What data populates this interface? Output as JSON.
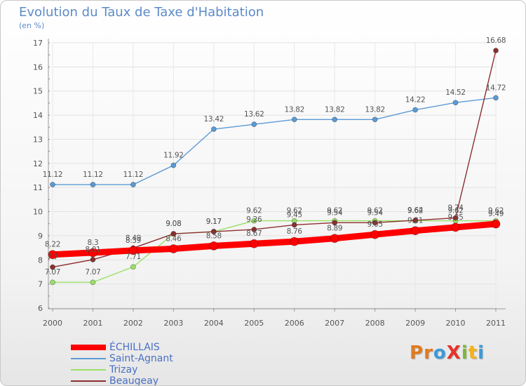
{
  "title": "Evolution du Taux de Taxe d'Habitation",
  "subtitle": "(en %)",
  "logo": {
    "text": "ProXiti",
    "letters": [
      "P",
      "r",
      "o",
      "X",
      "i",
      "t",
      "i"
    ],
    "colors": [
      "#e07b1e",
      "#e07b1e",
      "#3a9ad9",
      "#e5342a",
      "#7ab83a",
      "#f2b21b",
      "#3a9ad9"
    ]
  },
  "chart_data": {
    "type": "line",
    "x": [
      2000,
      2001,
      2002,
      2003,
      2004,
      2005,
      2006,
      2007,
      2008,
      2009,
      2010,
      2011
    ],
    "ylim": [
      6,
      17
    ],
    "yticks": [
      6,
      7,
      8,
      9,
      10,
      11,
      12,
      13,
      14,
      15,
      16,
      17
    ],
    "grid": true,
    "legend_position": "bottom-left",
    "series": [
      {
        "name": "ÉCHILLAIS",
        "color": "#ff0000",
        "values": [
          8.22,
          8.3,
          8.39,
          8.46,
          8.58,
          8.67,
          8.76,
          8.89,
          9.05,
          9.21,
          9.35,
          9.49
        ],
        "labels": [
          "8.22",
          "8.3",
          "8.39",
          "8.46",
          "8.58",
          "8.67",
          "8.76",
          "8.89",
          "9.05",
          "9.21",
          "9.35",
          "9.49"
        ]
      },
      {
        "name": "Saint-Agnant",
        "color": "#5b9bd5",
        "values": [
          11.12,
          11.12,
          11.12,
          11.92,
          13.42,
          13.62,
          13.82,
          13.82,
          13.82,
          14.22,
          14.52,
          14.72
        ],
        "labels": [
          "11.12",
          "11.12",
          "11.12",
          "11.92",
          "13.42",
          "13.62",
          "13.82",
          "13.82",
          "13.82",
          "14.22",
          "14.52",
          "14.72"
        ]
      },
      {
        "name": "Trizay",
        "color": "#99e066",
        "values": [
          7.07,
          7.07,
          7.71,
          9.08,
          9.17,
          9.62,
          9.62,
          9.62,
          9.62,
          9.62,
          9.62,
          9.62
        ],
        "labels": [
          "7.07",
          "7.07",
          "7.71",
          "9.08",
          "9.17",
          "9.62",
          "9.62",
          "9.62",
          "9.62",
          "9.62",
          "9.62",
          "9.62"
        ]
      },
      {
        "name": "Beaugeay",
        "color": "#8b2f2f",
        "values": [
          7.7,
          8.01,
          8.49,
          9.08,
          9.17,
          9.26,
          9.45,
          9.54,
          9.54,
          9.64,
          9.74,
          16.68
        ],
        "labels": [
          "7.7",
          "8.01",
          "8.49",
          "9.08",
          "9.17",
          "9.26",
          "9.45",
          "9.54",
          "9.54",
          "9.64",
          "9.74",
          "16.68"
        ]
      }
    ]
  }
}
